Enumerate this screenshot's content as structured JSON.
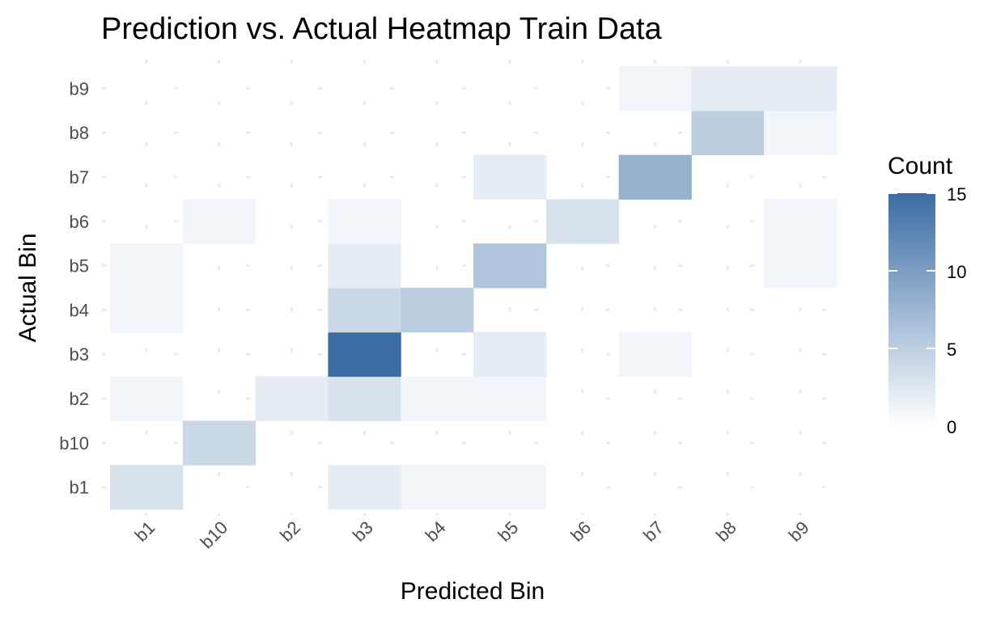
{
  "chart_data": {
    "type": "heatmap",
    "title": "Prediction vs. Actual Heatmap Train Data",
    "xlabel": "Predicted Bin",
    "ylabel": "Actual Bin",
    "x_categories": [
      "b1",
      "b10",
      "b2",
      "b3",
      "b4",
      "b5",
      "b6",
      "b7",
      "b8",
      "b9"
    ],
    "y_categories": [
      "b1",
      "b10",
      "b2",
      "b3",
      "b4",
      "b5",
      "b6",
      "b7",
      "b8",
      "b9"
    ],
    "cells": [
      {
        "x": "b1",
        "y": "b1",
        "value": 3
      },
      {
        "x": "b3",
        "y": "b1",
        "value": 2
      },
      {
        "x": "b4",
        "y": "b1",
        "value": 1
      },
      {
        "x": "b5",
        "y": "b1",
        "value": 1
      },
      {
        "x": "b10",
        "y": "b10",
        "value": 4
      },
      {
        "x": "b1",
        "y": "b2",
        "value": 1
      },
      {
        "x": "b2",
        "y": "b2",
        "value": 2
      },
      {
        "x": "b3",
        "y": "b2",
        "value": 3
      },
      {
        "x": "b4",
        "y": "b2",
        "value": 1
      },
      {
        "x": "b5",
        "y": "b2",
        "value": 1
      },
      {
        "x": "b3",
        "y": "b3",
        "value": 15
      },
      {
        "x": "b5",
        "y": "b3",
        "value": 2
      },
      {
        "x": "b7",
        "y": "b3",
        "value": 1
      },
      {
        "x": "b1",
        "y": "b4",
        "value": 1
      },
      {
        "x": "b3",
        "y": "b4",
        "value": 4
      },
      {
        "x": "b4",
        "y": "b4",
        "value": 5
      },
      {
        "x": "b1",
        "y": "b5",
        "value": 1
      },
      {
        "x": "b3",
        "y": "b5",
        "value": 2
      },
      {
        "x": "b5",
        "y": "b5",
        "value": 6
      },
      {
        "x": "b9",
        "y": "b5",
        "value": 1
      },
      {
        "x": "b10",
        "y": "b6",
        "value": 1
      },
      {
        "x": "b3",
        "y": "b6",
        "value": 1
      },
      {
        "x": "b6",
        "y": "b6",
        "value": 3
      },
      {
        "x": "b9",
        "y": "b6",
        "value": 1
      },
      {
        "x": "b5",
        "y": "b7",
        "value": 2
      },
      {
        "x": "b7",
        "y": "b7",
        "value": 8
      },
      {
        "x": "b8",
        "y": "b8",
        "value": 5
      },
      {
        "x": "b9",
        "y": "b8",
        "value": 1
      },
      {
        "x": "b7",
        "y": "b9",
        "value": 1
      },
      {
        "x": "b8",
        "y": "b9",
        "value": 2
      },
      {
        "x": "b9",
        "y": "b9",
        "value": 2
      }
    ],
    "legend": {
      "title": "Count",
      "ticks": [
        0,
        5,
        10,
        15
      ],
      "range": [
        0,
        15
      ],
      "low_color": "#ffffff",
      "high_color": "#3a6da4",
      "placement": "right"
    },
    "grid": true
  }
}
